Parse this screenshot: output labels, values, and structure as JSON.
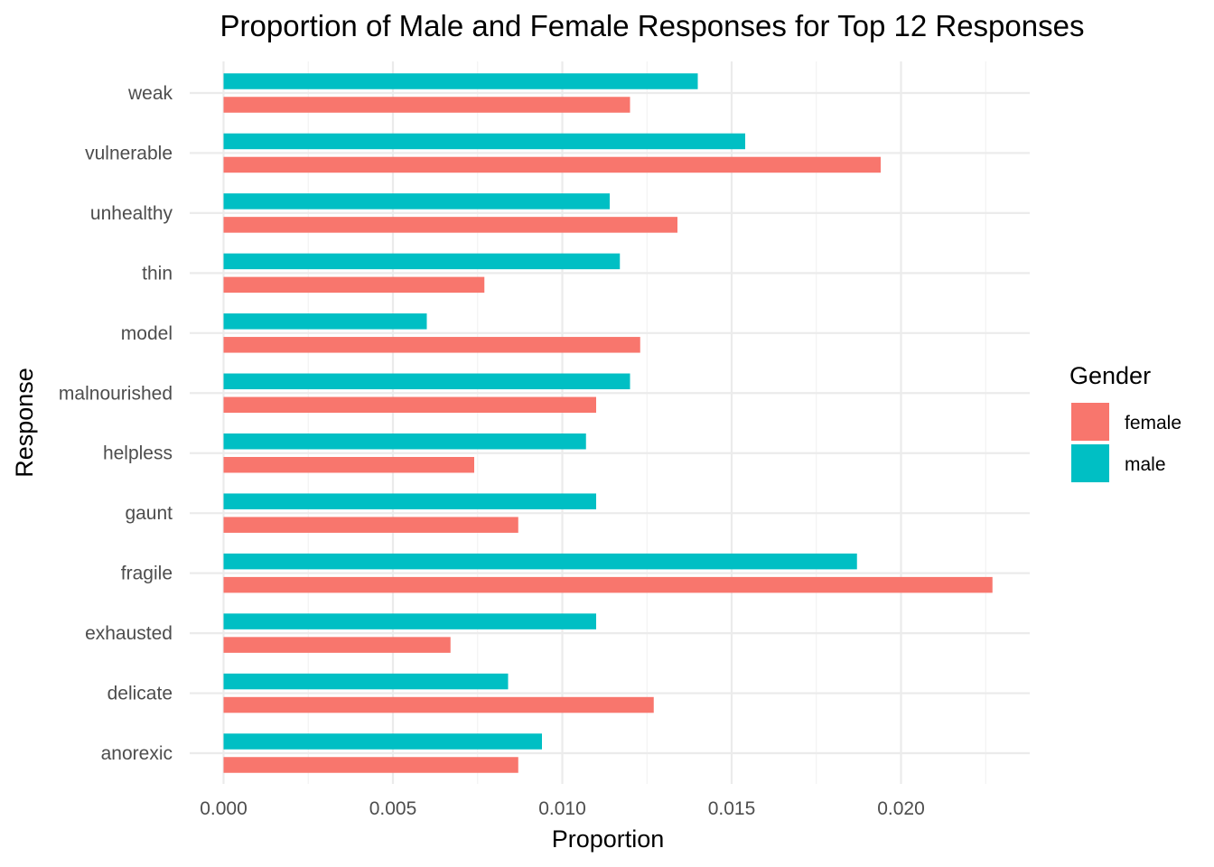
{
  "chart_data": {
    "type": "bar",
    "orientation": "horizontal",
    "title": "Proportion of Male and Female Responses for Top 12 Responses",
    "xlabel": "Proportion",
    "ylabel": "Response",
    "xlim": [
      0,
      0.0238
    ],
    "x_ticks": [
      0.0,
      0.005,
      0.01,
      0.015,
      0.02
    ],
    "x_tick_labels": [
      "0.000",
      "0.005",
      "0.010",
      "0.015",
      "0.020"
    ],
    "categories": [
      "anorexic",
      "delicate",
      "exhausted",
      "fragile",
      "gaunt",
      "helpless",
      "malnourished",
      "model",
      "thin",
      "unhealthy",
      "vulnerable",
      "weak"
    ],
    "series": [
      {
        "name": "female",
        "color": "#F8766D",
        "values": [
          0.0087,
          0.0127,
          0.0067,
          0.0227,
          0.0087,
          0.0074,
          0.011,
          0.0123,
          0.0077,
          0.0134,
          0.0194,
          0.012
        ]
      },
      {
        "name": "male",
        "color": "#00BFC4",
        "values": [
          0.0094,
          0.0084,
          0.011,
          0.0187,
          0.011,
          0.0107,
          0.012,
          0.006,
          0.0117,
          0.0114,
          0.0154,
          0.014
        ]
      }
    ],
    "legend": {
      "title": "Gender",
      "position": "right"
    },
    "grid": true,
    "theme": "minimal"
  }
}
